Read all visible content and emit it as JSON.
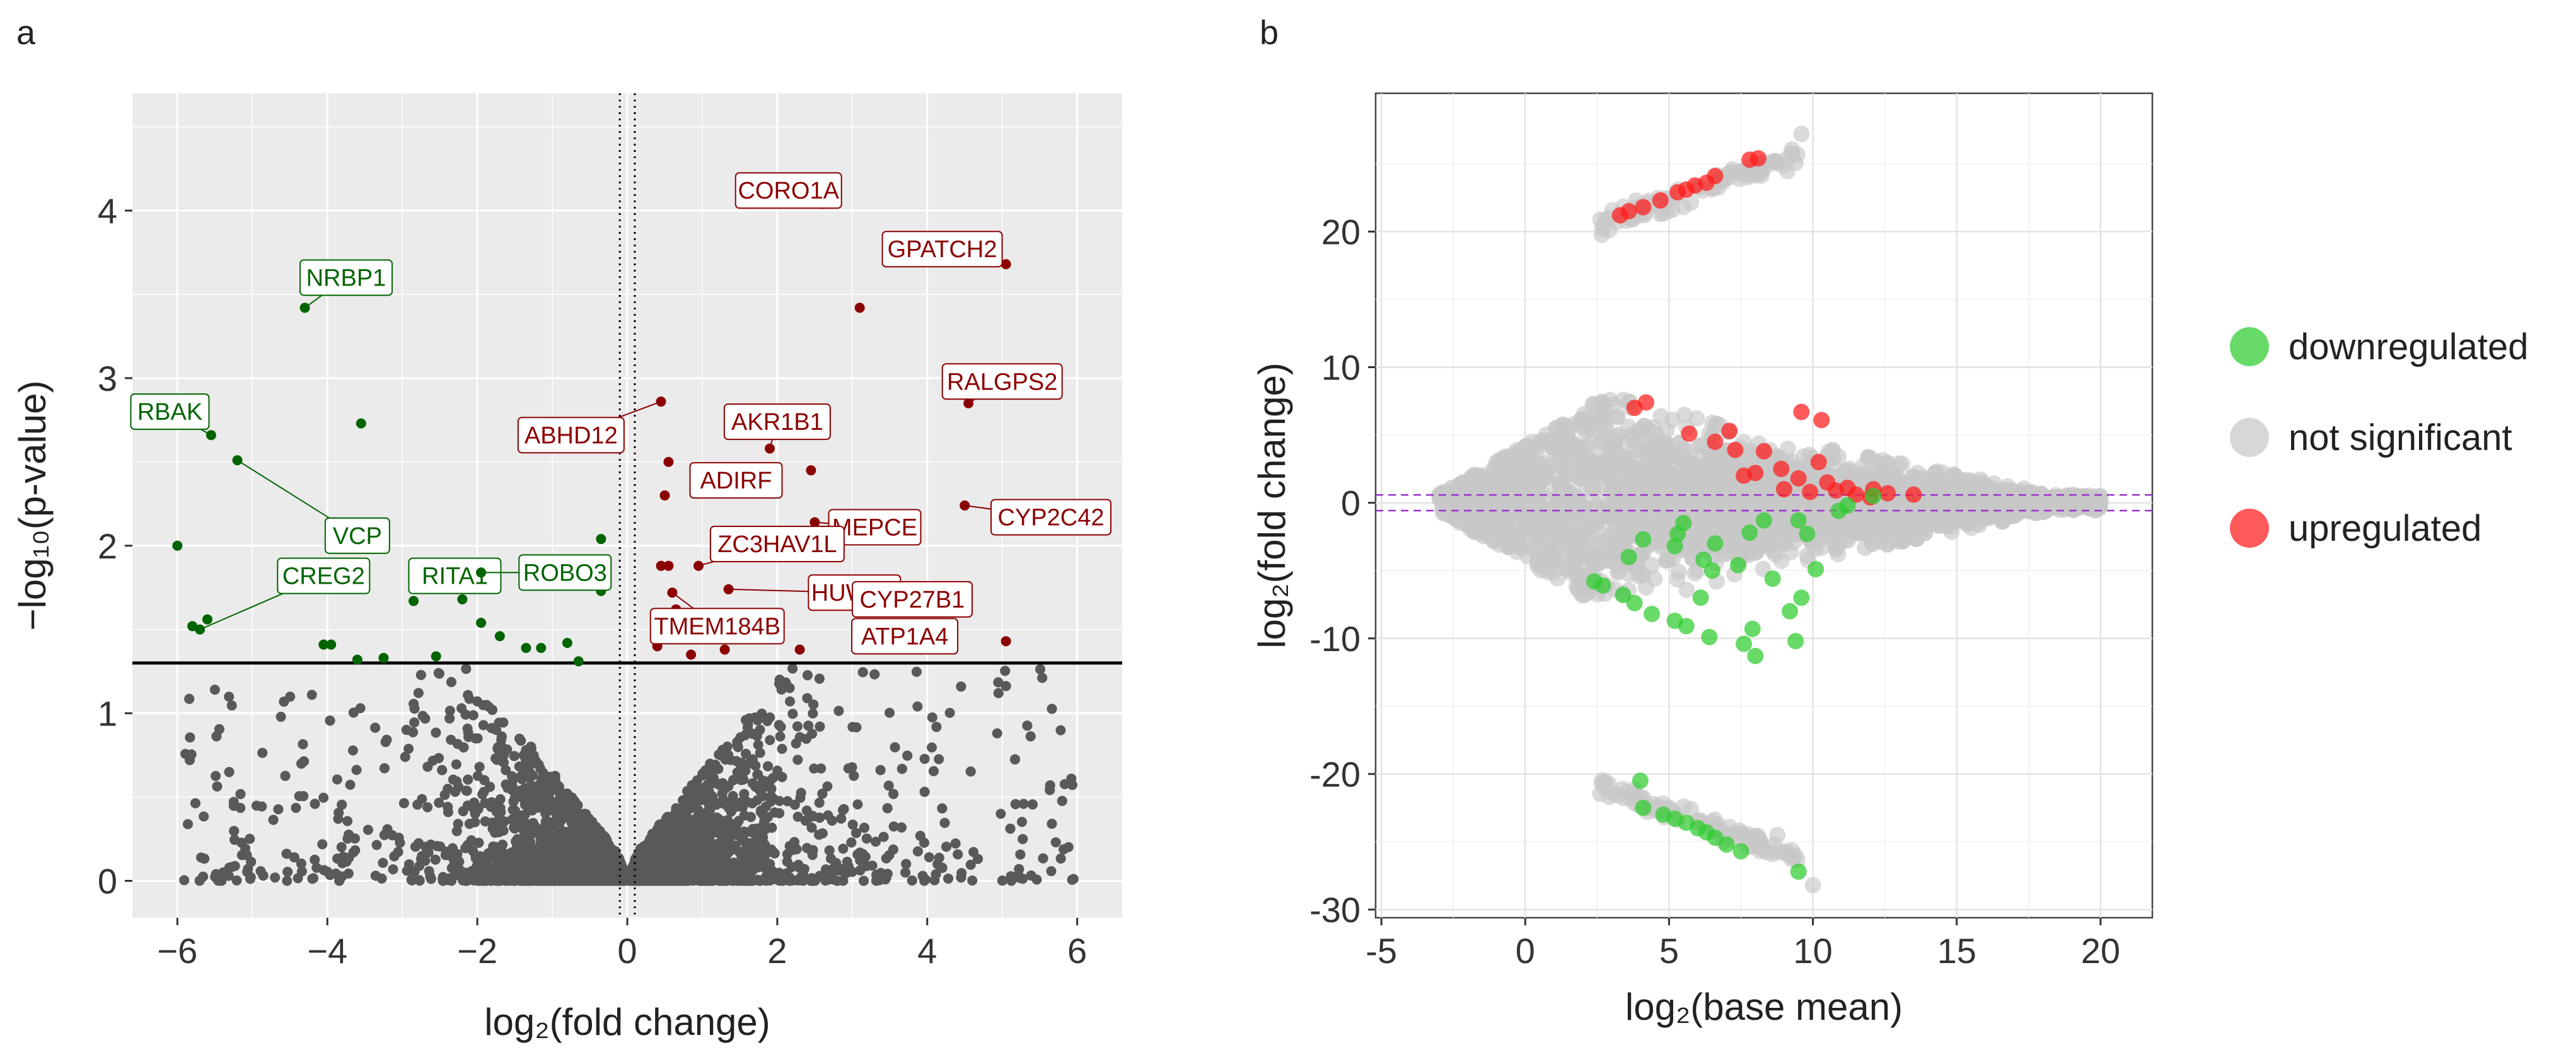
{
  "colors": {
    "panel_bg": "#ebebeb",
    "grid": "#ffffff",
    "up_dark": "#8b0000",
    "down_dark": "#006400",
    "ns_dark": "#595959",
    "up_ma": "#ff1a1a",
    "down_ma": "#2ecc2e",
    "ns_ma": "#c8c8c8",
    "ref_line": "#9933cc",
    "axis_text": "#333333"
  },
  "panel_a_label": "a",
  "panel_b_label": "b",
  "chart_data": [
    {
      "type": "scatter",
      "title": "",
      "xlabel": "log₂(fold change)",
      "ylabel": "−log₁₀(p-value)",
      "xlim": [
        -6.6,
        6.6
      ],
      "ylim": [
        -0.22,
        4.7
      ],
      "xticks": [
        -6,
        -4,
        -2,
        0,
        2,
        4,
        6
      ],
      "xtick_labels": [
        "−6",
        "−4",
        "−2",
        "0",
        "2",
        "4",
        "6"
      ],
      "yticks": [
        0,
        1,
        2,
        3,
        4
      ],
      "ytick_labels": [
        "0",
        "1",
        "2",
        "3",
        "4"
      ],
      "grid": true,
      "significance_threshold": 1.3,
      "fold_change_thresholds": [
        -0.1,
        0.1
      ],
      "background_cloud": "~10,000 non-significant genes forming a V-shaped cloud below the significance line",
      "labeled_genes": [
        {
          "gene": "NRBP1",
          "x": -4.3,
          "y": 3.42,
          "group": "down"
        },
        {
          "gene": "RBAK",
          "x": -5.55,
          "y": 2.66,
          "group": "down"
        },
        {
          "gene": "VCP",
          "x": -5.2,
          "y": 2.51,
          "group": "down"
        },
        {
          "gene": "RITA1",
          "x": -2.3,
          "y": 1.8,
          "group": "down"
        },
        {
          "gene": "ROBO3",
          "x": -1.95,
          "y": 1.84,
          "group": "down"
        },
        {
          "gene": "CREG2",
          "x": -5.7,
          "y": 1.5,
          "group": "down"
        },
        {
          "gene": "CORO1A",
          "x": 2.6,
          "y": 4.04,
          "group": "up"
        },
        {
          "gene": "GPATCH2",
          "x": 5.05,
          "y": 3.68,
          "group": "up"
        },
        {
          "gene": "RALGPS2",
          "x": 4.55,
          "y": 2.85,
          "group": "up"
        },
        {
          "gene": "ABHD12",
          "x": 0.45,
          "y": 2.86,
          "group": "up"
        },
        {
          "gene": "AKR1B1",
          "x": 1.9,
          "y": 2.58,
          "group": "up"
        },
        {
          "gene": "ADIRF",
          "x": 1.05,
          "y": 2.44,
          "group": "up"
        },
        {
          "gene": "MEPCE",
          "x": 2.5,
          "y": 2.14,
          "group": "up"
        },
        {
          "gene": "CYP2C42",
          "x": 4.5,
          "y": 2.24,
          "group": "up"
        },
        {
          "gene": "ZC3HAV1L",
          "x": 0.95,
          "y": 1.88,
          "group": "up"
        },
        {
          "gene": "HUWE1",
          "x": 1.35,
          "y": 1.74,
          "group": "up"
        },
        {
          "gene": "CYP27B1",
          "x": 3.8,
          "y": 1.66,
          "group": "up"
        },
        {
          "gene": "TMEM184B",
          "x": 0.6,
          "y": 1.72,
          "group": "up"
        },
        {
          "gene": "ATP1A4",
          "x": 3.65,
          "y": 1.5,
          "group": "up"
        }
      ],
      "other_significant_points": [
        {
          "x": -6.0,
          "y": 2.0,
          "group": "down"
        },
        {
          "x": -5.8,
          "y": 1.52,
          "group": "down"
        },
        {
          "x": -5.6,
          "y": 1.56,
          "group": "down"
        },
        {
          "x": -3.55,
          "y": 2.73,
          "group": "down"
        },
        {
          "x": -4.05,
          "y": 1.41,
          "group": "down"
        },
        {
          "x": -3.95,
          "y": 1.41,
          "group": "down"
        },
        {
          "x": -3.6,
          "y": 1.32,
          "group": "down"
        },
        {
          "x": -3.25,
          "y": 1.33,
          "group": "down"
        },
        {
          "x": -2.85,
          "y": 1.67,
          "group": "down"
        },
        {
          "x": -2.55,
          "y": 1.34,
          "group": "down"
        },
        {
          "x": -2.2,
          "y": 1.68,
          "group": "down"
        },
        {
          "x": -1.95,
          "y": 1.54,
          "group": "down"
        },
        {
          "x": -1.7,
          "y": 1.46,
          "group": "down"
        },
        {
          "x": -1.25,
          "y": 1.8,
          "group": "down"
        },
        {
          "x": -1.35,
          "y": 1.39,
          "group": "down"
        },
        {
          "x": -1.15,
          "y": 1.39,
          "group": "down"
        },
        {
          "x": -0.8,
          "y": 1.42,
          "group": "down"
        },
        {
          "x": -0.65,
          "y": 1.31,
          "group": "down"
        },
        {
          "x": -0.35,
          "y": 2.04,
          "group": "down"
        },
        {
          "x": -0.35,
          "y": 1.73,
          "group": "down"
        },
        {
          "x": 3.1,
          "y": 3.42,
          "group": "up"
        },
        {
          "x": 0.55,
          "y": 2.5,
          "group": "up"
        },
        {
          "x": 0.5,
          "y": 2.3,
          "group": "up"
        },
        {
          "x": 0.45,
          "y": 1.88,
          "group": "up"
        },
        {
          "x": 0.55,
          "y": 1.88,
          "group": "up"
        },
        {
          "x": 0.65,
          "y": 1.62,
          "group": "up"
        },
        {
          "x": 0.55,
          "y": 1.55,
          "group": "up"
        },
        {
          "x": 0.7,
          "y": 1.48,
          "group": "up"
        },
        {
          "x": 0.4,
          "y": 1.4,
          "group": "up"
        },
        {
          "x": 0.85,
          "y": 1.35,
          "group": "up"
        },
        {
          "x": 1.3,
          "y": 1.38,
          "group": "up"
        },
        {
          "x": 1.6,
          "y": 1.48,
          "group": "up"
        },
        {
          "x": 2.3,
          "y": 1.38,
          "group": "up"
        },
        {
          "x": 2.45,
          "y": 2.45,
          "group": "up"
        },
        {
          "x": 5.05,
          "y": 1.43,
          "group": "up"
        }
      ],
      "legend": "none"
    },
    {
      "type": "scatter",
      "title": "",
      "xlabel": "log₂(base mean)",
      "ylabel": "log₂(fold change)",
      "xlim": [
        -5.2,
        21.8
      ],
      "ylim": [
        -30.6,
        30.2
      ],
      "xticks": [
        -5,
        0,
        5,
        10,
        15,
        20
      ],
      "xtick_labels": [
        "-5",
        "0",
        "5",
        "10",
        "15",
        "20"
      ],
      "yticks": [
        -30,
        -20,
        -10,
        0,
        10,
        20
      ],
      "ytick_labels": [
        "-30",
        "-20",
        "-10",
        "0",
        "10",
        "20"
      ],
      "grid": true,
      "reference_lines": [
        0.58,
        -0.58
      ],
      "legend_position": "right",
      "legend": [
        {
          "label": "downregulated",
          "color": "#2ecc2e"
        },
        {
          "label": "not significant",
          "color": "#c8c8c8"
        },
        {
          "label": "upregulated",
          "color": "#ff1a1a"
        }
      ],
      "upregulated_points": [
        [
          3.3,
          21.2
        ],
        [
          3.6,
          21.5
        ],
        [
          4.1,
          21.8
        ],
        [
          4.7,
          22.3
        ],
        [
          5.3,
          22.9
        ],
        [
          5.6,
          23.1
        ],
        [
          6.3,
          23.6
        ],
        [
          6.6,
          24.1
        ],
        [
          7.8,
          25.3
        ],
        [
          8.1,
          25.4
        ],
        [
          5.9,
          23.4
        ],
        [
          4.2,
          7.4
        ],
        [
          3.8,
          7.0
        ],
        [
          9.6,
          6.7
        ],
        [
          7.1,
          5.3
        ],
        [
          10.3,
          6.1
        ],
        [
          5.7,
          5.1
        ],
        [
          6.6,
          4.5
        ],
        [
          7.3,
          3.9
        ],
        [
          8.3,
          3.8
        ],
        [
          10.2,
          3.0
        ],
        [
          8.9,
          2.5
        ],
        [
          8.0,
          2.2
        ],
        [
          9.5,
          1.8
        ],
        [
          10.5,
          1.5
        ],
        [
          10.8,
          0.9
        ],
        [
          11.2,
          1.1
        ],
        [
          11.5,
          0.6
        ],
        [
          12.1,
          1.0
        ],
        [
          12.6,
          0.7
        ],
        [
          13.5,
          0.6
        ],
        [
          12.0,
          0.4
        ],
        [
          9.0,
          1.0
        ],
        [
          9.9,
          0.8
        ],
        [
          7.6,
          2.0
        ]
      ],
      "downregulated_points": [
        [
          4.0,
          -20.5
        ],
        [
          4.1,
          -22.5
        ],
        [
          4.8,
          -23.0
        ],
        [
          5.2,
          -23.3
        ],
        [
          5.6,
          -23.6
        ],
        [
          6.0,
          -24.0
        ],
        [
          6.3,
          -24.3
        ],
        [
          6.6,
          -24.7
        ],
        [
          7.0,
          -25.2
        ],
        [
          7.5,
          -25.7
        ],
        [
          9.5,
          -27.2
        ],
        [
          2.4,
          -5.8
        ],
        [
          2.7,
          -6.1
        ],
        [
          3.4,
          -6.8
        ],
        [
          3.8,
          -7.4
        ],
        [
          4.4,
          -8.2
        ],
        [
          5.2,
          -8.7
        ],
        [
          5.6,
          -9.1
        ],
        [
          6.4,
          -9.9
        ],
        [
          8.0,
          -11.3
        ],
        [
          7.6,
          -10.4
        ],
        [
          9.4,
          -10.2
        ],
        [
          7.9,
          -9.3
        ],
        [
          9.2,
          -8.0
        ],
        [
          6.1,
          -7.0
        ],
        [
          6.5,
          -5.0
        ],
        [
          7.4,
          -4.6
        ],
        [
          8.6,
          -5.6
        ],
        [
          9.6,
          -7.0
        ],
        [
          10.1,
          -4.9
        ],
        [
          3.6,
          -4.0
        ],
        [
          4.1,
          -2.7
        ],
        [
          5.2,
          -3.2
        ],
        [
          5.3,
          -2.3
        ],
        [
          5.5,
          -1.5
        ],
        [
          6.2,
          -4.2
        ],
        [
          6.6,
          -3.0
        ],
        [
          7.8,
          -2.2
        ],
        [
          8.3,
          -1.3
        ],
        [
          9.5,
          -1.3
        ],
        [
          9.8,
          -2.3
        ],
        [
          10.9,
          -0.6
        ],
        [
          11.2,
          -0.2
        ],
        [
          12.1,
          0.5
        ]
      ],
      "not_significant_description": "dense grey cloud of ~20,000 genes fanning out from x=-3 to x=20 around fold change 0, plus diagonal grey bands near +21 to +27 and -21 to -28"
    }
  ]
}
